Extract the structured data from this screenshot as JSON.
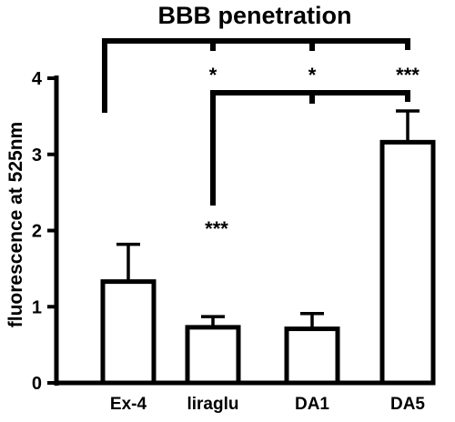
{
  "chart_data": {
    "type": "bar",
    "title": "BBB penetration",
    "xlabel": "",
    "ylabel": "fluorescence at 525nm",
    "categories": [
      "Ex-4",
      "liraglu",
      "DA1",
      "DA5"
    ],
    "values": [
      1.33,
      0.73,
      0.71,
      3.16
    ],
    "errors": [
      0.49,
      0.14,
      0.2,
      0.41
    ],
    "ylim": [
      0,
      4
    ],
    "yticks": [
      "0",
      "1",
      "2",
      "3",
      "4"
    ],
    "grid": false,
    "bar_fill": "#ffffff",
    "stroke_color": "#000000",
    "annotations": {
      "top_bracket_stars": [
        "*",
        "*",
        "***"
      ],
      "second_bracket_stars": [
        "***",
        "***"
      ]
    }
  }
}
